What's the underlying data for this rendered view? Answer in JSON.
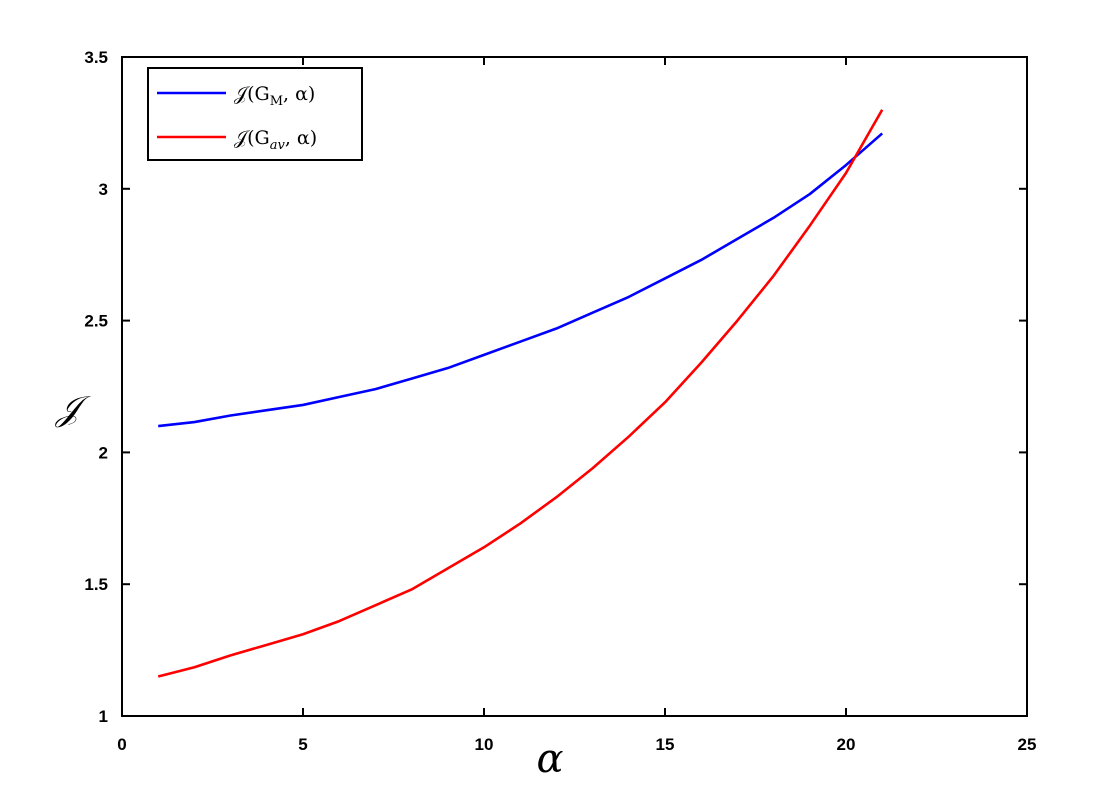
{
  "chart_data": {
    "type": "line",
    "xlabel": "α",
    "ylabel": "𝒥",
    "xlim": [
      0,
      25
    ],
    "ylim": [
      1,
      3.5
    ],
    "xticks": [
      0,
      5,
      10,
      15,
      20,
      25
    ],
    "yticks": [
      1,
      1.5,
      2,
      2.5,
      3,
      3.5
    ],
    "xtick_labels": [
      "0",
      "5",
      "10",
      "15",
      "20",
      "25"
    ],
    "ytick_labels": [
      "1",
      "1.5",
      "2",
      "2.5",
      "3",
      "3.5"
    ],
    "grid": false,
    "legend_position": "top-left",
    "series": [
      {
        "name": "𝒥(G_M, α)",
        "legend_parts": {
          "prefix": "𝒥(G",
          "sub": "M",
          "suffix": ", α)"
        },
        "color": "#0000ff",
        "x": [
          1,
          2,
          3,
          4,
          5,
          6,
          7,
          8,
          9,
          10,
          11,
          12,
          13,
          14,
          15,
          16,
          17,
          18,
          19,
          20,
          21
        ],
        "y": [
          2.1,
          2.115,
          2.14,
          2.16,
          2.18,
          2.21,
          2.24,
          2.28,
          2.32,
          2.37,
          2.42,
          2.47,
          2.53,
          2.59,
          2.66,
          2.73,
          2.81,
          2.89,
          2.98,
          3.09,
          3.21
        ]
      },
      {
        "name": "𝒥(G_av, α)",
        "legend_parts": {
          "prefix": "𝒥(G",
          "sub": "av",
          "suffix": ", α)"
        },
        "color": "#ff0000",
        "x": [
          1,
          2,
          3,
          4,
          5,
          6,
          7,
          8,
          9,
          10,
          11,
          12,
          13,
          14,
          15,
          16,
          17,
          18,
          19,
          20,
          21
        ],
        "y": [
          1.15,
          1.185,
          1.23,
          1.27,
          1.31,
          1.36,
          1.42,
          1.48,
          1.56,
          1.64,
          1.73,
          1.83,
          1.94,
          2.06,
          2.19,
          2.34,
          2.5,
          2.67,
          2.86,
          3.06,
          3.3
        ]
      }
    ]
  }
}
